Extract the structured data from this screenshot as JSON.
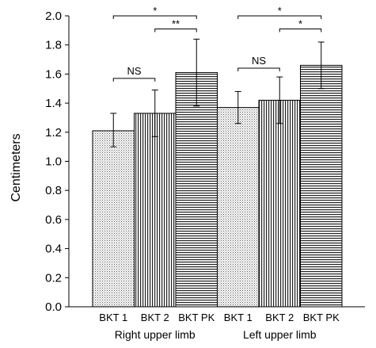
{
  "chart_data": {
    "type": "bar",
    "ylabel": "Centimeters",
    "ylim": [
      0,
      2.0
    ],
    "yticks": [
      "0.0",
      "0.2",
      "0.4",
      "0.6",
      "0.8",
      "1.0",
      "1.2",
      "1.4",
      "1.6",
      "1.8",
      "2.0"
    ],
    "grid": false,
    "groups": [
      {
        "label": "Right upper limb",
        "bars": [
          {
            "category": "BKT 1",
            "value": 1.21,
            "error_low": 1.1,
            "error_high": 1.33,
            "pattern": "dots"
          },
          {
            "category": "BKT 2",
            "value": 1.33,
            "error_low": 1.17,
            "error_high": 1.49,
            "pattern": "vertical"
          },
          {
            "category": "BKT PK",
            "value": 1.61,
            "error_low": 1.38,
            "error_high": 1.84,
            "pattern": "horizontal"
          }
        ],
        "comparisons": [
          {
            "from": 0,
            "to": 1,
            "label": "NS",
            "y": 1.57
          },
          {
            "from": 1,
            "to": 2,
            "label": "**",
            "y": 1.91
          },
          {
            "from": 0,
            "to": 2,
            "label": "*",
            "y": 2.0
          }
        ]
      },
      {
        "label": "Left upper limb",
        "bars": [
          {
            "category": "BKT 1",
            "value": 1.37,
            "error_low": 1.26,
            "error_high": 1.48,
            "pattern": "dots"
          },
          {
            "category": "BKT 2",
            "value": 1.42,
            "error_low": 1.26,
            "error_high": 1.58,
            "pattern": "vertical"
          },
          {
            "category": "BKT PK",
            "value": 1.66,
            "error_low": 1.5,
            "error_high": 1.82,
            "pattern": "horizontal"
          }
        ],
        "comparisons": [
          {
            "from": 0,
            "to": 1,
            "label": "NS",
            "y": 1.64
          },
          {
            "from": 1,
            "to": 2,
            "label": "*",
            "y": 1.91
          },
          {
            "from": 0,
            "to": 2,
            "label": "*",
            "y": 2.0
          }
        ]
      }
    ]
  }
}
